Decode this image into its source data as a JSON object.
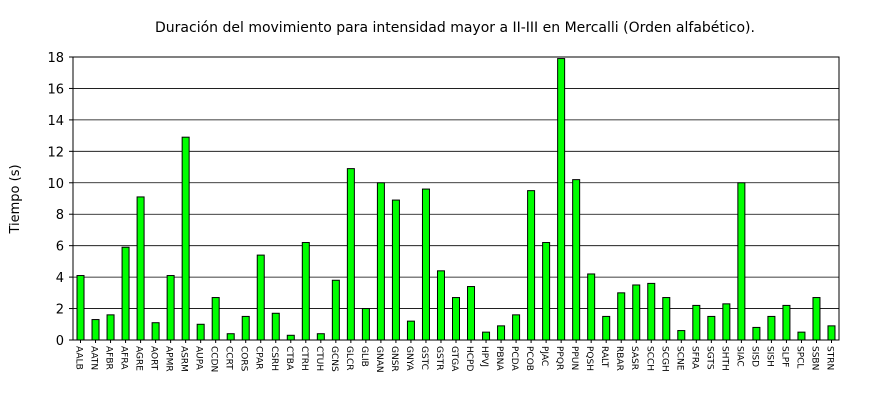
{
  "chart_data": {
    "type": "bar",
    "title": "Duración del movimiento para intensidad mayor a II-III en Mercalli (Orden alfabético).",
    "xlabel": "",
    "ylabel": "Tiempo (s)",
    "ylim": [
      0,
      18
    ],
    "yticks": [
      0,
      2,
      4,
      6,
      8,
      10,
      12,
      14,
      16,
      18
    ],
    "ytick_labels": [
      "0",
      "2",
      "4",
      "6",
      "8",
      "10",
      "12",
      "14",
      "16",
      "18"
    ],
    "grid": true,
    "bar_color": "#00ff00",
    "categories": [
      "AALB",
      "AATN",
      "AFBR",
      "AFRA",
      "AGRE",
      "AORT",
      "APMR",
      "ASRM",
      "AUPA",
      "CCDN",
      "CCRT",
      "CORS",
      "CPAR",
      "CSRH",
      "CTBA",
      "CTRH",
      "CTUH",
      "GCNS",
      "GLCR",
      "GLIB",
      "GNAN",
      "GNSR",
      "GNYA",
      "GSTC",
      "GSTR",
      "GTGA",
      "HCPD",
      "HPVJ",
      "PBNA",
      "PCDA",
      "PCOB",
      "PJAC",
      "PPQR",
      "PPUN",
      "PQSH",
      "RALT",
      "RBAR",
      "SASR",
      "SCCH",
      "SCGH",
      "SCNE",
      "SFRA",
      "SGTS",
      "SHTH",
      "SIAC",
      "SISD",
      "SISH",
      "SLPF",
      "SPCL",
      "SSBN",
      "STRN"
    ],
    "values": [
      4.1,
      1.3,
      1.6,
      5.9,
      9.1,
      1.1,
      4.1,
      12.9,
      1.0,
      2.7,
      0.4,
      1.5,
      5.4,
      1.7,
      0.3,
      6.2,
      0.4,
      3.8,
      10.9,
      2.0,
      10.0,
      8.9,
      1.2,
      9.6,
      4.4,
      2.7,
      3.4,
      0.5,
      0.9,
      1.6,
      9.5,
      6.2,
      17.9,
      10.2,
      4.2,
      1.5,
      3.0,
      3.5,
      3.6,
      2.7,
      0.6,
      2.2,
      1.5,
      2.3,
      10.0,
      0.8,
      1.5,
      2.2,
      0.5,
      2.7,
      0.9
    ]
  }
}
